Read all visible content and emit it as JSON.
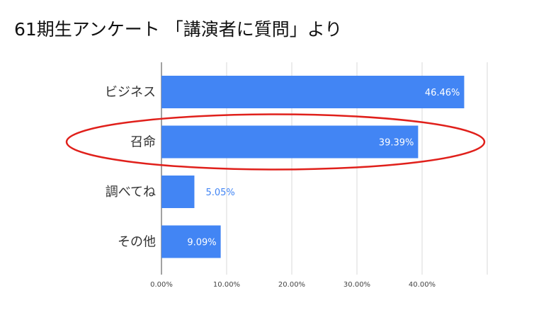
{
  "chart_data": {
    "type": "bar",
    "orientation": "horizontal",
    "title": "61期生アンケート 「講演者に質問」より",
    "categories": [
      "ビジネス",
      "召命",
      "調べてね",
      "その他"
    ],
    "values": [
      46.46,
      39.39,
      5.05,
      9.09
    ],
    "value_labels": [
      "46.46%",
      "39.39%",
      "5.05%",
      "9.09%"
    ],
    "xticks": [
      "0.00%",
      "10.00%",
      "20.00%",
      "30.00%",
      "40.00%"
    ],
    "xlim": [
      0,
      50
    ],
    "grid": true,
    "legend": "none",
    "bar_color": "#4285f4",
    "highlight": {
      "category": "召命",
      "shape": "ellipse",
      "color": "#e0201b"
    }
  }
}
